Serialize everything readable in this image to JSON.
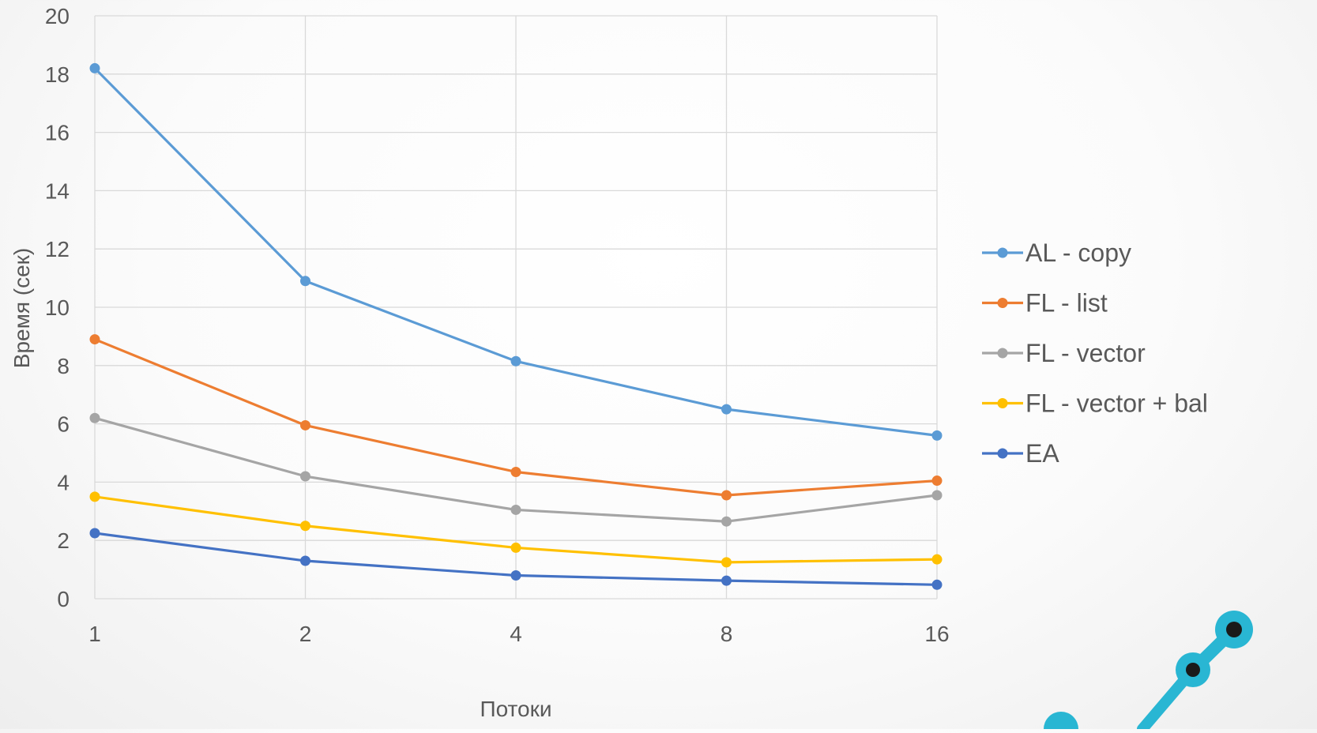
{
  "chart_data": {
    "type": "line",
    "title": "",
    "xlabel": "Потоки",
    "ylabel": "Время (сек)",
    "categories": [
      "1",
      "2",
      "4",
      "8",
      "16"
    ],
    "ylim": [
      0,
      20
    ],
    "yticks": [
      "0",
      "2",
      "4",
      "6",
      "8",
      "10",
      "12",
      "14",
      "16",
      "18",
      "20"
    ],
    "grid": true,
    "legend_position": "right",
    "series": [
      {
        "name": "AL - copy",
        "color": "#5b9bd5",
        "values": [
          18.2,
          10.9,
          8.15,
          6.5,
          5.6
        ]
      },
      {
        "name": "FL - list",
        "color": "#ed7d31",
        "values": [
          8.9,
          5.95,
          4.35,
          3.55,
          4.05
        ]
      },
      {
        "name": "FL - vector",
        "color": "#a5a5a5",
        "values": [
          6.2,
          4.2,
          3.05,
          2.65,
          3.55
        ]
      },
      {
        "name": "FL - vector + bal",
        "color": "#ffc000",
        "values": [
          3.5,
          2.5,
          1.75,
          1.25,
          1.35
        ]
      },
      {
        "name": "EA",
        "color": "#4472c4",
        "values": [
          2.25,
          1.3,
          0.8,
          0.62,
          0.48
        ]
      }
    ]
  },
  "decoration": {
    "corner_icon_name": "connected-nodes-icon",
    "corner_icon_color": "#29b6d3"
  }
}
